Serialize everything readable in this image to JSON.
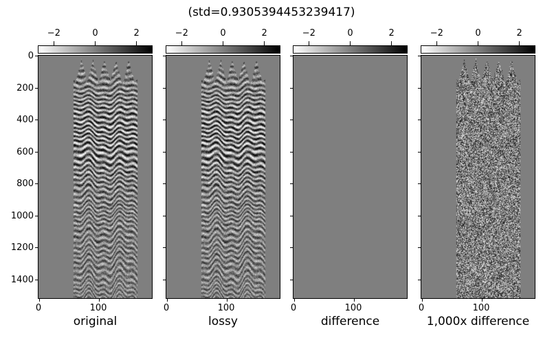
{
  "title": "(std=0.9305394453239417)",
  "panels": [
    {
      "label": "original"
    },
    {
      "label": "lossy"
    },
    {
      "label": "difference"
    },
    {
      "label": "1,000x difference"
    }
  ],
  "axes": {
    "x_ticks": [
      0,
      100
    ],
    "x_tick_labels": [
      "0",
      "100"
    ],
    "x_max": 192,
    "y_ticks": [
      0,
      200,
      400,
      600,
      800,
      1000,
      1200,
      1400
    ],
    "y_tick_labels": [
      "0",
      "200",
      "400",
      "600",
      "800",
      "1000",
      "1200",
      "1400"
    ],
    "y_max": 1516
  },
  "colorbar": {
    "tick_labels": [
      "−2",
      "0",
      "2"
    ],
    "tick_positions_pct": [
      14,
      50,
      86
    ],
    "min_color": "#ffffff",
    "max_color": "#000000"
  },
  "colors": {
    "zero_gray": "#7f7f7f",
    "axis": "#000000",
    "background": "#ffffff"
  },
  "chart_data": {
    "type": "heatmap",
    "title": "(std=0.9305394453239417)",
    "std": 0.9305394453239417,
    "layout": "1x4 row of image subplots, shared y-axis labeled on first subplot only, horizontal grayscale colorbar above each subplot",
    "colormap": "grayscale, white = low, black = high, mid-gray = 0",
    "colorbar_ticks": [
      -2,
      0,
      2
    ],
    "x_ticks": [
      0,
      100
    ],
    "x_range": [
      0,
      192
    ],
    "y_ticks": [
      0,
      200,
      400,
      600,
      800,
      1000,
      1200,
      1400
    ],
    "y_range": [
      0,
      1516
    ],
    "panels": [
      {
        "label": "original",
        "style": "seismic",
        "content": "seismic shot-gather image: layered wavy reflections in a central vertical band (traces ~60-170) with jagged spike features at the top, flat zero-gray padding at left and right"
      },
      {
        "label": "lossy",
        "style": "seismic",
        "content": "lossy-compressed reconstruction, visually identical to the original panel"
      },
      {
        "label": "difference",
        "style": "flat",
        "content": "original minus lossy: uniformly zero, flat mid-gray everywhere"
      },
      {
        "label": "1,000x difference",
        "style": "noise",
        "content": "difference amplified 1000x: high-contrast salt-and-pepper random noise confined to the same central data band"
      }
    ]
  }
}
